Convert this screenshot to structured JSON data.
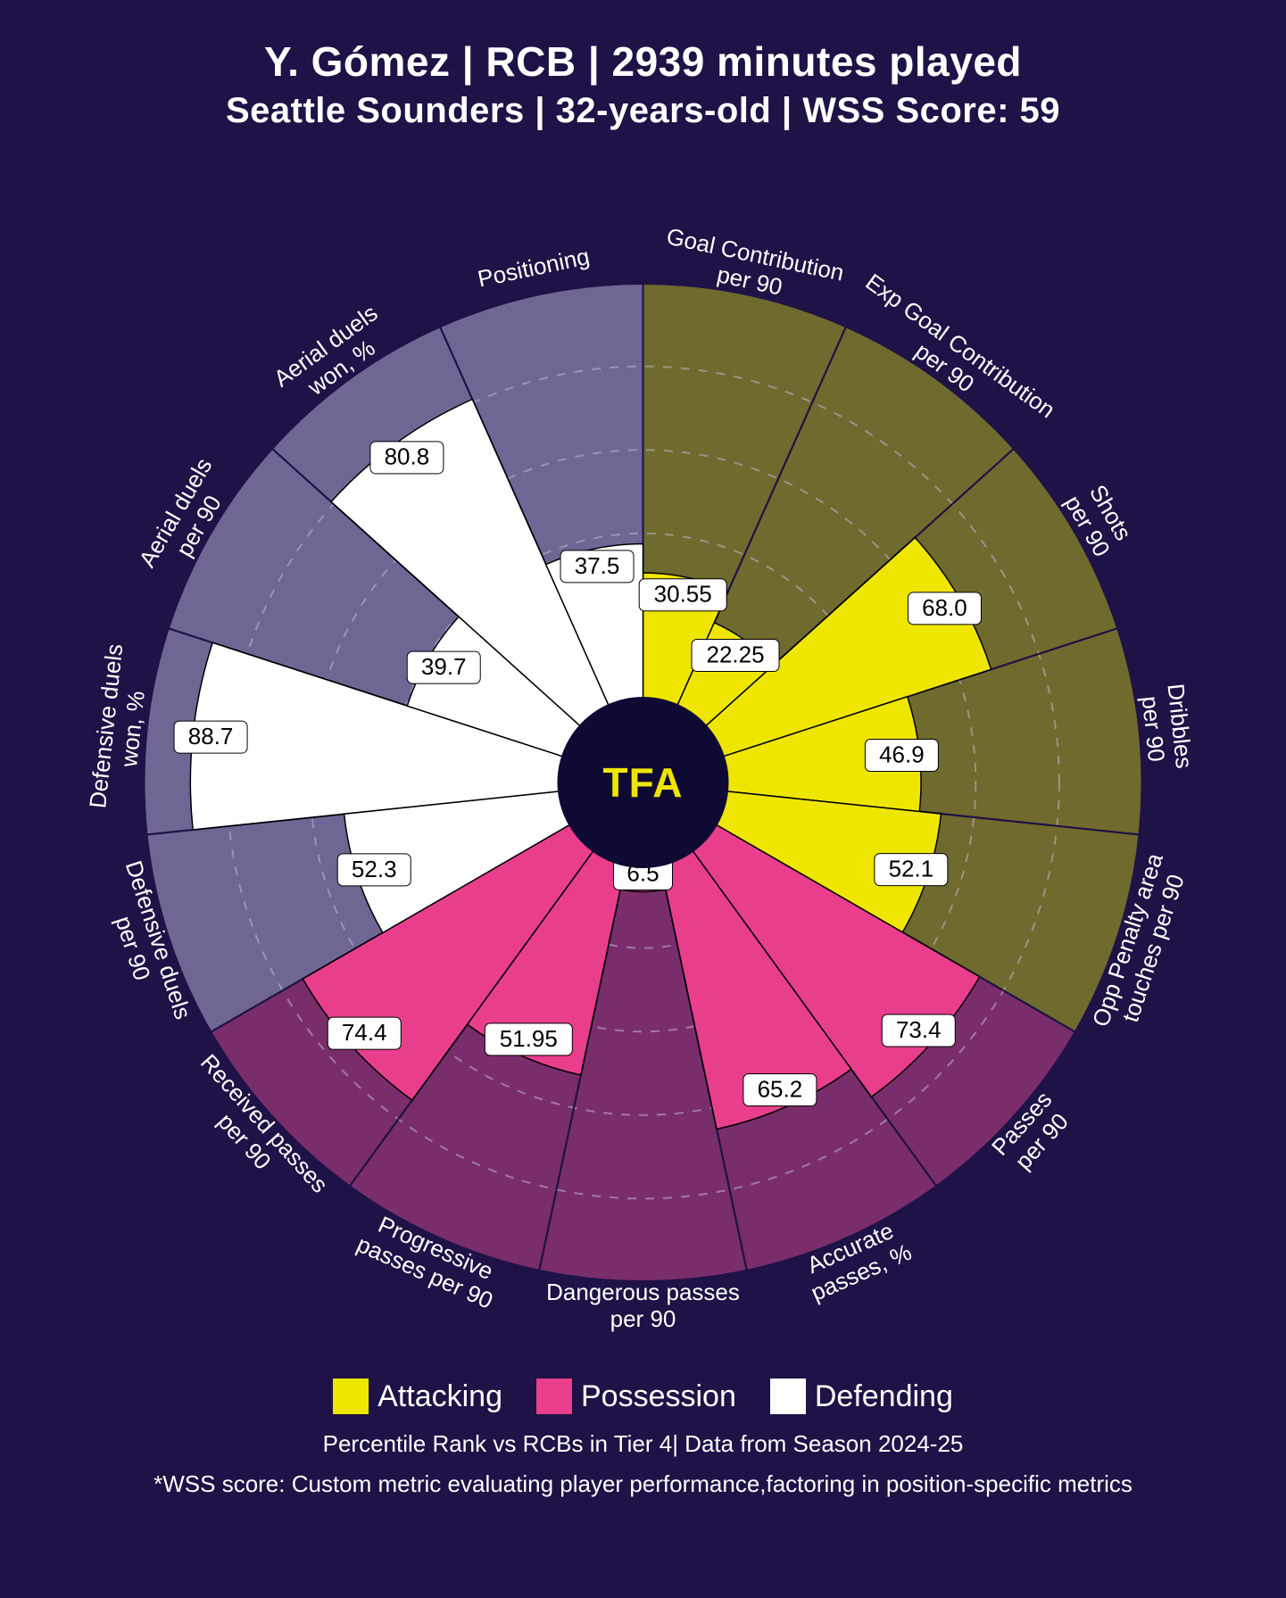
{
  "background_color": "#1e1246",
  "title_line1": "Y. Gómez | RCB | 2939 minutes played",
  "title_line2": "Seattle Sounders | 32-years-old | WSS Score: 59",
  "legend": [
    {
      "label": "Attacking",
      "color": "#efe600"
    },
    {
      "label": "Possession",
      "color": "#e83e8c"
    },
    {
      "label": "Defending",
      "color": "#ffffff"
    }
  ],
  "footer_line1": "Percentile Rank vs RCBs in Tier 4| Data from Season 2024-25",
  "footer_line2": "*WSS score: Custom metric evaluating player performance,factoring in position-specific metrics",
  "center_logo": "TFA",
  "chart": {
    "type": "polar-bar",
    "outer_radius": 560,
    "inner_radius": 92,
    "grid_rings": [
      0.2,
      0.4,
      0.6,
      0.8
    ],
    "grid_color": "#bfb6d6",
    "grid_dash": "10 10",
    "start_angle_deg": -90,
    "categories": {
      "attacking": {
        "bar": "#efe600",
        "bg": "#6f6a2d"
      },
      "possession": {
        "bar": "#e83e8c",
        "bg": "#7a2d6b"
      },
      "defending": {
        "bar": "#ffffff",
        "bg": "#6f6694"
      }
    },
    "hub_fill": "#0f0a33",
    "hub_stroke": "#efe600",
    "metrics": [
      {
        "label_lines": [
          "Goal Contribution",
          "per 90"
        ],
        "value": 30.55,
        "cat": "attacking"
      },
      {
        "label_lines": [
          "Exp Goal Contribution",
          "per 90"
        ],
        "value": 22.25,
        "cat": "attacking"
      },
      {
        "label_lines": [
          "Shots",
          "per 90"
        ],
        "value": 68.0,
        "cat": "attacking"
      },
      {
        "label_lines": [
          "Dribbles",
          "per 90"
        ],
        "value": 46.9,
        "cat": "attacking"
      },
      {
        "label_lines": [
          "Opp Penalty area",
          "touches per 90"
        ],
        "value": 52.1,
        "cat": "attacking"
      },
      {
        "label_lines": [
          "Passes",
          "per 90"
        ],
        "value": 73.4,
        "cat": "possession"
      },
      {
        "label_lines": [
          "Accurate",
          "passes, %"
        ],
        "value": 65.2,
        "cat": "possession"
      },
      {
        "label_lines": [
          "Dangerous passes",
          "per 90"
        ],
        "value": 6.5,
        "cat": "possession"
      },
      {
        "label_lines": [
          "Progressive",
          "passes per 90"
        ],
        "value": 51.95,
        "cat": "possession"
      },
      {
        "label_lines": [
          "Received passes",
          "per 90"
        ],
        "value": 74.4,
        "cat": "possession"
      },
      {
        "label_lines": [
          "Defensive duels",
          "per 90"
        ],
        "value": 52.3,
        "cat": "defending"
      },
      {
        "label_lines": [
          "Defensive duels",
          "won, %"
        ],
        "value": 88.7,
        "cat": "defending"
      },
      {
        "label_lines": [
          "Aerial duels",
          "per 90"
        ],
        "value": 39.7,
        "cat": "defending"
      },
      {
        "label_lines": [
          "Aerial duels",
          "won, %"
        ],
        "value": 80.8,
        "cat": "defending"
      },
      {
        "label_lines": [
          "Positioning"
        ],
        "value": 37.5,
        "cat": "defending"
      }
    ],
    "label_fontsize": 26,
    "value_fontsize": 26
  }
}
